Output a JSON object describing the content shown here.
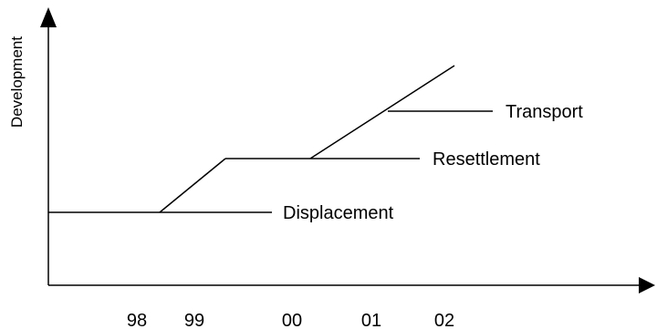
{
  "y_axis_label": "Development",
  "x_ticks": [
    "98",
    "99",
    "00",
    "01",
    "02"
  ],
  "labels": {
    "displacement": "Displacement",
    "resettlement": "Resettlement",
    "transport": "Transport"
  },
  "colors": {
    "line": "#000000",
    "background": "#ffffff"
  }
}
